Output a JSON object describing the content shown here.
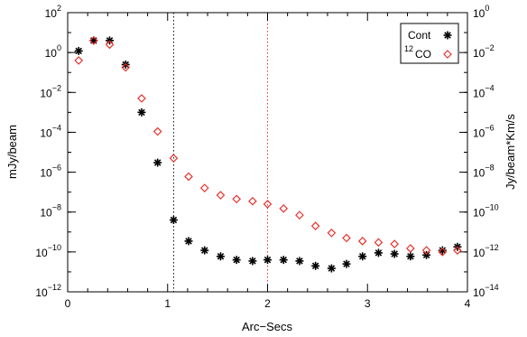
{
  "chart_data": {
    "type": "scatter",
    "title": "",
    "xlabel": "Arc−Secs",
    "ylabel_left": "mJy/beam",
    "ylabel_right": "Jy/beam*Km/s",
    "xlim": [
      0,
      4
    ],
    "ylim_left": [
      1e-12,
      100
    ],
    "ylim_right": [
      1e-14,
      1
    ],
    "yscale": "log",
    "x_ticks": [
      "0",
      "1",
      "2",
      "3",
      "4"
    ],
    "y_ticks_left": [
      {
        "base": "10",
        "exp": "2"
      },
      {
        "base": "10",
        "exp": "0"
      },
      {
        "base": "10",
        "exp": "−2"
      },
      {
        "base": "10",
        "exp": "−4"
      },
      {
        "base": "10",
        "exp": "−6"
      },
      {
        "base": "10",
        "exp": "−8"
      },
      {
        "base": "10",
        "exp": "−10"
      },
      {
        "base": "10",
        "exp": "−12"
      }
    ],
    "y_ticks_right": [
      {
        "base": "10",
        "exp": "0"
      },
      {
        "base": "10",
        "exp": "−2"
      },
      {
        "base": "10",
        "exp": "−4"
      },
      {
        "base": "10",
        "exp": "−6"
      },
      {
        "base": "10",
        "exp": "−8"
      },
      {
        "base": "10",
        "exp": "−10"
      },
      {
        "base": "10",
        "exp": "−12"
      },
      {
        "base": "10",
        "exp": "−14"
      }
    ],
    "vlines": [
      {
        "x": 1.06,
        "color": "#000000",
        "style": "dotted"
      },
      {
        "x": 2.0,
        "color": "#e8332e",
        "style": "dotted"
      }
    ],
    "legend": {
      "placement": "top-right",
      "entries": [
        {
          "text": "Cont",
          "sup": "",
          "marker": "asterisk",
          "color": "#000000"
        },
        {
          "text": "CO",
          "sup": "12",
          "marker": "diamond",
          "color": "#e8332e"
        }
      ]
    },
    "series": [
      {
        "name": "Cont",
        "axis": "left",
        "marker": "asterisk",
        "color": "#000000",
        "x": [
          0.11,
          0.26,
          0.42,
          0.58,
          0.74,
          0.9,
          1.06,
          1.21,
          1.37,
          1.53,
          1.69,
          1.85,
          2.0,
          2.16,
          2.32,
          2.48,
          2.64,
          2.79,
          2.95,
          3.11,
          3.27,
          3.43,
          3.59,
          3.75,
          3.9
        ],
        "y": [
          1.2,
          4,
          4,
          0.25,
          0.001,
          3e-06,
          4e-09,
          3.5e-10,
          1.2e-10,
          6e-11,
          4e-11,
          3.5e-11,
          4e-11,
          4e-11,
          3.5e-11,
          2e-11,
          1.5e-11,
          2.5e-11,
          6e-11,
          9e-11,
          8e-11,
          6e-11,
          7e-11,
          1.2e-10,
          1.8e-10
        ]
      },
      {
        "name": "CO",
        "axis": "right",
        "marker": "diamond",
        "color": "#e8332e",
        "x": [
          0.11,
          0.26,
          0.42,
          0.58,
          0.74,
          0.9,
          1.06,
          1.21,
          1.37,
          1.53,
          1.69,
          1.85,
          2.0,
          2.16,
          2.32,
          2.48,
          2.64,
          2.79,
          2.95,
          3.11,
          3.27,
          3.43,
          3.59,
          3.75,
          3.9
        ],
        "y": [
          0.004,
          0.04,
          0.025,
          0.0018,
          5e-05,
          1.1e-06,
          5e-08,
          6e-09,
          1.6e-09,
          7e-10,
          4.5e-10,
          3.5e-10,
          2.5e-10,
          1.5e-10,
          7e-11,
          2e-11,
          9e-12,
          5e-12,
          3.5e-12,
          3e-12,
          2.5e-12,
          1.5e-12,
          1.2e-12,
          1e-12,
          1.2e-12
        ]
      }
    ]
  }
}
